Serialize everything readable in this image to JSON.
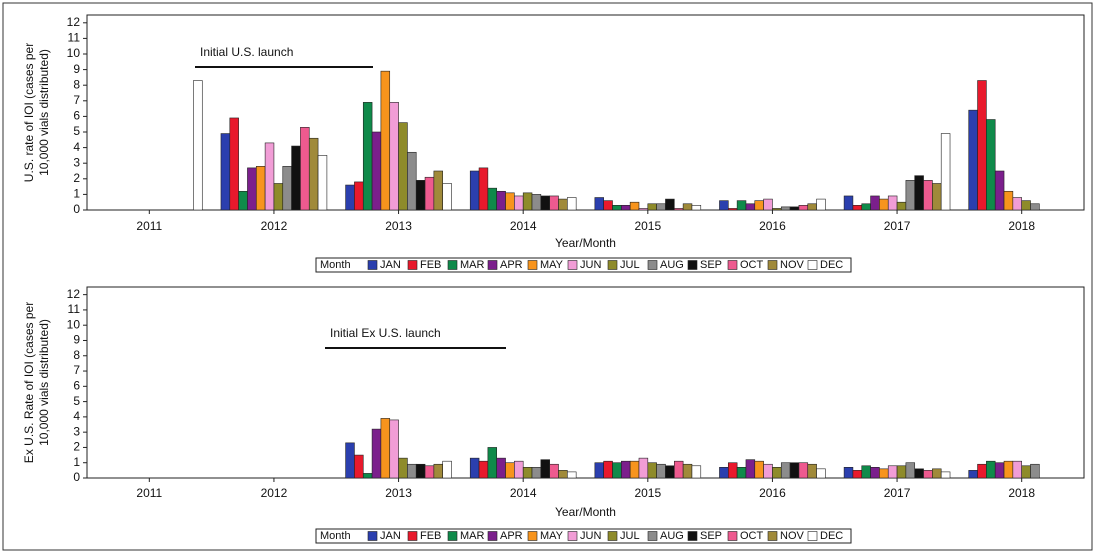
{
  "chart_data": [
    {
      "type": "bar",
      "ylabel": [
        "U.S. rate of IOI (cases per",
        "10,000 vials distributed)"
      ],
      "xlabel": "Year/Month",
      "annotation": "Initial U.S. launch",
      "legend_title": "Month",
      "categories": [
        "2011",
        "2012",
        "2013",
        "2014",
        "2015",
        "2016",
        "2017",
        "2018"
      ],
      "ylim": [
        0,
        12.5
      ],
      "yticks": [
        0,
        1,
        2,
        3,
        4,
        5,
        6,
        7,
        8,
        9,
        10,
        11,
        12
      ],
      "series": [
        {
          "name": "JAN",
          "color": "#2b3fae",
          "values": [
            null,
            4.9,
            1.6,
            2.5,
            0.8,
            0.6,
            0.9,
            6.4
          ]
        },
        {
          "name": "FEB",
          "color": "#e8192c",
          "values": [
            null,
            5.9,
            1.8,
            2.7,
            0.6,
            0.1,
            0.3,
            8.3
          ]
        },
        {
          "name": "MAR",
          "color": "#0f8a4a",
          "values": [
            null,
            1.2,
            6.9,
            1.4,
            0.3,
            0.6,
            0.4,
            5.8
          ]
        },
        {
          "name": "APR",
          "color": "#7b1f8c",
          "values": [
            null,
            2.7,
            5.0,
            1.2,
            0.3,
            0.4,
            0.9,
            2.5
          ]
        },
        {
          "name": "MAY",
          "color": "#f7941d",
          "values": [
            null,
            2.8,
            8.9,
            1.1,
            0.5,
            0.6,
            0.7,
            1.2
          ]
        },
        {
          "name": "JUN",
          "color": "#f19dd6",
          "values": [
            null,
            4.3,
            6.9,
            0.9,
            0.1,
            0.7,
            0.9,
            0.8
          ]
        },
        {
          "name": "JUL",
          "color": "#8e8b2a",
          "values": [
            null,
            1.7,
            5.6,
            1.1,
            0.4,
            0.1,
            0.5,
            0.6
          ]
        },
        {
          "name": "AUG",
          "color": "#8c8c8c",
          "values": [
            null,
            2.8,
            3.7,
            1.0,
            0.4,
            0.2,
            1.9,
            0.4
          ]
        },
        {
          "name": "SEP",
          "color": "#111111",
          "values": [
            null,
            4.1,
            1.9,
            0.9,
            0.7,
            0.2,
            2.2,
            null
          ]
        },
        {
          "name": "OCT",
          "color": "#ee5a8f",
          "values": [
            null,
            5.3,
            2.1,
            0.9,
            0.1,
            0.3,
            1.9,
            null
          ]
        },
        {
          "name": "NOV",
          "color": "#a08a3a",
          "values": [
            null,
            4.6,
            2.5,
            0.7,
            0.4,
            0.4,
            1.7,
            null
          ]
        },
        {
          "name": "DEC",
          "color": "#ffffff",
          "values": [
            8.3,
            3.5,
            1.7,
            0.8,
            0.3,
            0.7,
            4.9,
            null
          ]
        }
      ]
    },
    {
      "type": "bar",
      "ylabel": [
        "Ex U.S. Rate of IOI (cases per",
        "10,000 vials distributed)"
      ],
      "xlabel": "Year/Month",
      "annotation": "Initial Ex U.S. launch",
      "legend_title": "Month",
      "categories": [
        "2011",
        "2012",
        "2013",
        "2014",
        "2015",
        "2016",
        "2017",
        "2018"
      ],
      "ylim": [
        0,
        12.5
      ],
      "yticks": [
        0,
        1,
        2,
        3,
        4,
        5,
        6,
        7,
        8,
        9,
        10,
        11,
        12
      ],
      "series": [
        {
          "name": "JAN",
          "color": "#2b3fae",
          "values": [
            null,
            null,
            2.3,
            1.3,
            1.0,
            0.7,
            0.7,
            0.5
          ]
        },
        {
          "name": "FEB",
          "color": "#e8192c",
          "values": [
            null,
            null,
            1.5,
            1.1,
            1.1,
            1.0,
            0.5,
            0.9
          ]
        },
        {
          "name": "MAR",
          "color": "#0f8a4a",
          "values": [
            null,
            null,
            0.3,
            2.0,
            1.0,
            0.7,
            0.8,
            1.1
          ]
        },
        {
          "name": "APR",
          "color": "#7b1f8c",
          "values": [
            null,
            null,
            3.2,
            1.3,
            1.1,
            1.2,
            0.7,
            1.0
          ]
        },
        {
          "name": "MAY",
          "color": "#f7941d",
          "values": [
            null,
            null,
            3.9,
            1.0,
            1.1,
            1.1,
            0.6,
            1.1
          ]
        },
        {
          "name": "JUN",
          "color": "#f19dd6",
          "values": [
            null,
            null,
            3.8,
            1.1,
            1.3,
            0.9,
            0.8,
            1.1
          ]
        },
        {
          "name": "JUL",
          "color": "#8e8b2a",
          "values": [
            null,
            null,
            1.3,
            0.7,
            1.0,
            0.7,
            0.8,
            0.8
          ]
        },
        {
          "name": "AUG",
          "color": "#8c8c8c",
          "values": [
            null,
            null,
            0.9,
            0.7,
            0.9,
            1.0,
            1.0,
            0.9
          ]
        },
        {
          "name": "SEP",
          "color": "#111111",
          "values": [
            null,
            null,
            0.9,
            1.2,
            0.8,
            1.0,
            0.6,
            null
          ]
        },
        {
          "name": "OCT",
          "color": "#ee5a8f",
          "values": [
            null,
            null,
            0.8,
            0.9,
            1.1,
            1.0,
            0.5,
            null
          ]
        },
        {
          "name": "NOV",
          "color": "#a08a3a",
          "values": [
            null,
            null,
            0.9,
            0.5,
            0.9,
            0.9,
            0.6,
            null
          ]
        },
        {
          "name": "DEC",
          "color": "#ffffff",
          "values": [
            null,
            null,
            1.1,
            0.4,
            0.8,
            0.6,
            0.4,
            null
          ]
        }
      ]
    }
  ]
}
